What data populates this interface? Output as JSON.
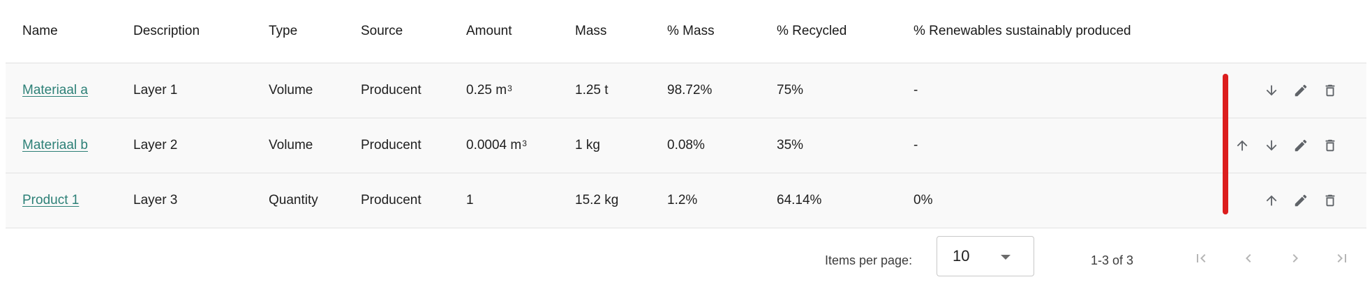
{
  "table": {
    "headers": {
      "name": "Name",
      "description": "Description",
      "type": "Type",
      "source": "Source",
      "amount": "Amount",
      "mass": "Mass",
      "pct_mass": "% Mass",
      "pct_recycled": "% Recycled",
      "pct_renewables": "% Renewables sustainably produced"
    },
    "rows": [
      {
        "name": "Materiaal a",
        "description": "Layer 1",
        "type": "Volume",
        "source": "Producent",
        "amount": "0.25 m",
        "amount_unit_sup": "3",
        "mass": "1.25 t",
        "pct_mass": "98.72%",
        "pct_recycled": "75%",
        "pct_renewables": "-"
      },
      {
        "name": "Materiaal b",
        "description": "Layer 2",
        "type": "Volume",
        "source": "Producent",
        "amount": "0.0004 m",
        "amount_unit_sup": "3",
        "mass": "1 kg",
        "pct_mass": "0.08%",
        "pct_recycled": "35%",
        "pct_renewables": "-"
      },
      {
        "name": "Product 1",
        "description": "Layer 3",
        "type": "Quantity",
        "source": "Producent",
        "amount": "1",
        "mass": "15.2 kg",
        "pct_mass": "1.2%",
        "pct_recycled": "64.14%",
        "pct_renewables": "0%"
      }
    ],
    "row_actions": {
      "move_up_icon": "arrow-up-icon",
      "move_down_icon": "arrow-down-icon",
      "edit_icon": "pencil-icon",
      "delete_icon": "trash-icon"
    }
  },
  "paginator": {
    "items_per_page_label": "Items per page:",
    "items_per_page_value": "10",
    "range_label": "1-3 of 3"
  },
  "colors": {
    "link": "#2d8077",
    "marker": "#dc1e1e",
    "icon": "#5f6368",
    "icon_disabled": "#b5b5b5"
  }
}
